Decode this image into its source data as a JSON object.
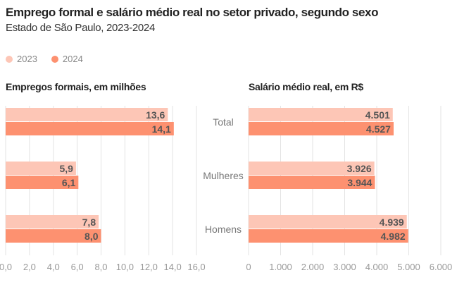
{
  "title": "Emprego formal e salário médio real no setor privado, segundo sexo",
  "subtitle": "Estado de São Paulo, 2023-2024",
  "legend": [
    {
      "label": "2023",
      "color": "#fdc6b6"
    },
    {
      "label": "2024",
      "color": "#fd9170"
    }
  ],
  "chart_data": [
    {
      "type": "bar",
      "orientation": "horizontal",
      "title": "Empregos formais, em milhões",
      "categories": [
        "Total",
        "Mulheres",
        "Homens"
      ],
      "series": [
        {
          "name": "2023",
          "values": [
            13.6,
            5.9,
            7.8
          ],
          "labels": [
            "13,6",
            "5,9",
            "7,8"
          ]
        },
        {
          "name": "2024",
          "values": [
            14.1,
            6.1,
            8.0
          ],
          "labels": [
            "14,1",
            "6,1",
            "8,0"
          ]
        }
      ],
      "xlim": [
        0,
        16
      ],
      "ticks": [
        0,
        2,
        4,
        6,
        8,
        10,
        12,
        14,
        16
      ],
      "tick_labels": [
        "0,0",
        "2,0",
        "4,0",
        "6,0",
        "8,0",
        "10,0",
        "12,0",
        "14,0",
        "16,0"
      ],
      "grid": true
    },
    {
      "type": "bar",
      "orientation": "horizontal",
      "title": "Salário médio real, em R$",
      "categories": [
        "Total",
        "Mulheres",
        "Homens"
      ],
      "series": [
        {
          "name": "2023",
          "values": [
            4501,
            3926,
            4939
          ],
          "labels": [
            "4.501",
            "3.926",
            "4.939"
          ]
        },
        {
          "name": "2024",
          "values": [
            4527,
            3944,
            4982
          ],
          "labels": [
            "4.527",
            "3.944",
            "4.982"
          ]
        }
      ],
      "xlim": [
        0,
        6000
      ],
      "ticks": [
        0,
        1000,
        2000,
        3000,
        4000,
        5000,
        6000
      ],
      "tick_labels": [
        "0",
        "1.000",
        "2.000",
        "3.000",
        "4.000",
        "5.000",
        "6.000"
      ],
      "grid": true
    }
  ]
}
